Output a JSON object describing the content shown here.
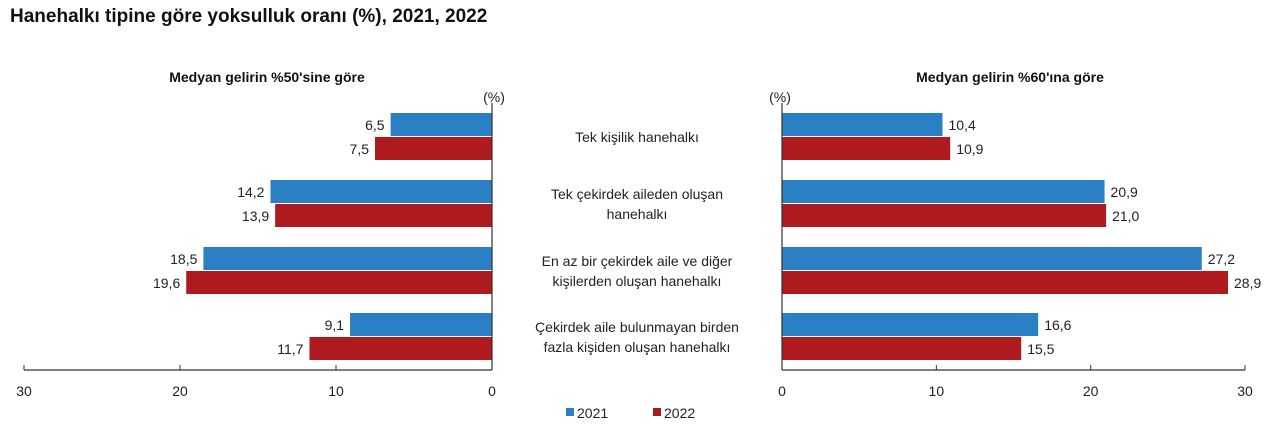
{
  "colors": {
    "2021": "#2b7fc4",
    "2022": "#ae1a1d"
  },
  "chart_data": [
    {
      "type": "bar",
      "orientation": "horizontal-reversed",
      "title": "Hanehalkı tipine göre yoksulluk oranı (%), 2021, 2022",
      "subtitle": "Medyan gelirin %50'sine göre",
      "unit_label": "(%)",
      "categories": [
        "Tek kişilik hanehalkı",
        "Tek çekirdek aileden oluşan hanehalkı",
        "En az bir çekirdek aile ve diğer kişilerden oluşan hanehalkı",
        "Çekirdek aile bulunmayan birden fazla kişiden oluşan hanehalkı"
      ],
      "series": [
        {
          "name": "2021",
          "values": [
            6.5,
            14.2,
            18.5,
            9.1
          ],
          "labels": [
            "6,5",
            "14,2",
            "18,5",
            "9,1"
          ]
        },
        {
          "name": "2022",
          "values": [
            7.5,
            13.9,
            19.6,
            11.7
          ],
          "labels": [
            "7,5",
            "13,9",
            "19,6",
            "11,7"
          ]
        }
      ],
      "xlim": [
        0,
        30
      ],
      "ticks": [
        "30",
        "20",
        "10",
        "0"
      ]
    },
    {
      "type": "bar",
      "orientation": "horizontal",
      "subtitle": "Medyan gelirin %60'ına göre",
      "unit_label": "(%)",
      "series": [
        {
          "name": "2021",
          "values": [
            10.4,
            20.9,
            27.2,
            16.6
          ],
          "labels": [
            "10,4",
            "20,9",
            "27,2",
            "16,6"
          ]
        },
        {
          "name": "2022",
          "values": [
            10.9,
            21.0,
            28.9,
            15.5
          ],
          "labels": [
            "10,9",
            "21,0",
            "28,9",
            "15,5"
          ]
        }
      ],
      "xlim": [
        0,
        30
      ],
      "ticks": [
        "0",
        "10",
        "20",
        "30"
      ]
    }
  ],
  "category_lines": [
    [
      "Tek kişilik hanehalkı"
    ],
    [
      "Tek çekirdek aileden oluşan",
      "hanehalkı"
    ],
    [
      "En az bir çekirdek aile ve diğer",
      "kişilerden oluşan hanehalkı"
    ],
    [
      "Çekirdek aile bulunmayan birden",
      "fazla kişiden oluşan hanehalkı"
    ]
  ],
  "legend": [
    "2021",
    "2022"
  ]
}
